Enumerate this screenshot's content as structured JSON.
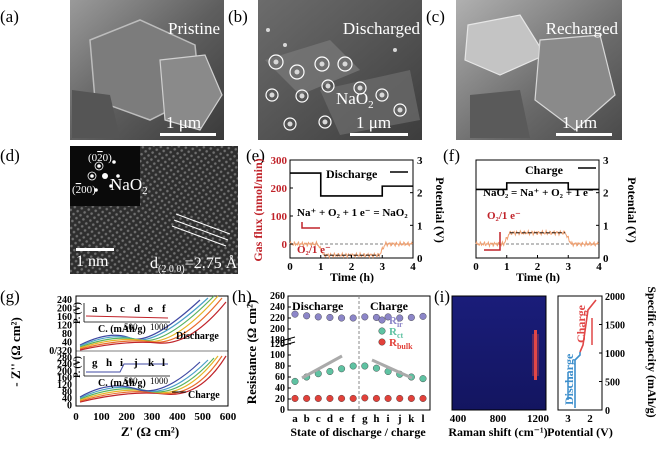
{
  "panels": {
    "a": {
      "letter": "(a)",
      "title": "Pristine",
      "scale": "1 μm"
    },
    "b": {
      "letter": "(b)",
      "title": "Discharged",
      "scale": "1 μm",
      "species": "NaO",
      "species_sub": "2"
    },
    "c": {
      "letter": "(c)",
      "title": "Recharged",
      "scale": "1 μm"
    },
    "d": {
      "letter": "(d)",
      "spot1": "(0",
      "spot1_bar": "2",
      "spot1_end": "0)",
      "spot2": "(",
      "spot2_bar": "2",
      "spot2_end": "00)",
      "species": "NaO",
      "species_sub": "2",
      "scale": "1 nm",
      "d_label": "d",
      "d_sub": "(2 0 0)",
      "d_value": "=2.75 Å"
    },
    "e": {
      "letter": "(e)",
      "ylabel": "Gas flux (nmol/min)",
      "ylabel_right": "Potential (V)",
      "xlabel": "Time (h)",
      "mode": "Discharge",
      "reaction": "Na⁺ + O₂ + 1 e⁻ = NaO₂",
      "rate_label": "O₂/1 e⁻",
      "yticks": [
        "0",
        "100",
        "200",
        "300"
      ],
      "yticks_right": [
        "0",
        "1",
        "2",
        "3"
      ],
      "xticks": [
        "0",
        "1",
        "2",
        "3",
        "4"
      ]
    },
    "f": {
      "letter": "(f)",
      "mode": "Charge",
      "reaction": "NaO₂ = Na⁺ + O₂ + 1 e⁻",
      "rate_label": "O₂/1 e⁻",
      "ylabel_right": "Potential (V)",
      "xlabel": "Time (h)",
      "yticks": [
        "0",
        "100",
        "200",
        "300"
      ],
      "yticks_right": [
        "0",
        "1",
        "2",
        "3"
      ],
      "xticks": [
        "0",
        "1",
        "2",
        "3",
        "4"
      ]
    },
    "g": {
      "letter": "(g)",
      "ylabel": "- Z'' (Ω cm²)",
      "xlabel": "Z' (Ω cm²)",
      "yticks_top": [
        "240",
        "200",
        "160",
        "120",
        "80",
        "40"
      ],
      "yticks_bottom": [
        "0/320",
        "280",
        "240",
        "200",
        "160",
        "120",
        "80",
        "40",
        "0"
      ],
      "xticks": [
        "0",
        "100",
        "200",
        "300",
        "400",
        "500",
        "600"
      ],
      "discharge_label": "Discharge",
      "charge_label": "Charge",
      "inset_top_states": [
        "a",
        "b",
        "c",
        "d",
        "e",
        "f"
      ],
      "inset_bottom_states": [
        "g",
        "h",
        "i",
        "j",
        "k",
        "l"
      ],
      "inset_xlabel": "C. (mAh/g)",
      "inset_ylabel": "P. (V)",
      "inset_ticks": [
        "500",
        "1000"
      ]
    },
    "h": {
      "letter": "(h)",
      "ylabel": "Resistance (Ω cm²)",
      "xlabel": "State of discharge / charge",
      "discharge_label": "Discharge",
      "charge_label": "Charge",
      "states": [
        "a",
        "b",
        "c",
        "d",
        "e",
        "f",
        "g",
        "h",
        "i",
        "j",
        "k",
        "l"
      ],
      "yticks": [
        "260",
        "240",
        "220",
        "200",
        "180",
        "120",
        "100",
        "80",
        "60",
        "40",
        "20",
        "0"
      ],
      "legend": [
        {
          "name": "R",
          "sub": "ir",
          "color": "#8c86c8"
        },
        {
          "name": "R",
          "sub": "ct",
          "color": "#5fc2a2"
        },
        {
          "name": "R",
          "sub": "bulk",
          "color": "#e2413a"
        }
      ]
    },
    "i": {
      "letter": "(i)",
      "raman_xlabel": "Raman shift (cm⁻¹)",
      "raman_xticks": [
        "400",
        "800",
        "1200"
      ],
      "pot_xlabel": "Potential (V)",
      "pot_xticks": [
        "3",
        "2"
      ],
      "ylabel_right": "Specific capacity (mAh/g)",
      "yticks_right": [
        "0",
        "500",
        "1000",
        "1500",
        "2000"
      ],
      "discharge_label": "Discharge",
      "charge_label": "Charge"
    }
  },
  "chart_data": [
    {
      "panel": "e",
      "type": "line",
      "title": "Discharge",
      "xlabel": "Time (h)",
      "ylabel": "Gas flux (nmol/min)",
      "ylabel_right": "Potential (V)",
      "xlim": [
        0,
        4
      ],
      "ylim": [
        -50,
        300
      ],
      "ylim_right": [
        0,
        3
      ],
      "series": [
        {
          "name": "Potential (V)",
          "axis": "right",
          "x": [
            0,
            1.0,
            1.0,
            3.0,
            3.0,
            4
          ],
          "y": [
            2.6,
            2.6,
            1.9,
            1.9,
            2.2,
            2.2
          ]
        },
        {
          "name": "Gas flux",
          "axis": "left",
          "x": [
            0,
            0.9,
            1.1,
            2.9,
            3.1,
            4
          ],
          "y": [
            0,
            0,
            -40,
            -40,
            0,
            0
          ]
        },
        {
          "name": "O2/1 e-",
          "axis": "left",
          "x": [
            1.1,
            2.9
          ],
          "y": [
            -40,
            -40
          ]
        }
      ]
    },
    {
      "panel": "f",
      "type": "line",
      "title": "Charge",
      "xlabel": "Time (h)",
      "ylabel_right": "Potential (V)",
      "xlim": [
        0,
        4
      ],
      "ylim": [
        -50,
        300
      ],
      "ylim_right": [
        0,
        3
      ],
      "series": [
        {
          "name": "Potential (V)",
          "axis": "right",
          "x": [
            0,
            1.0,
            1.0,
            3.0,
            3.0,
            4
          ],
          "y": [
            2.1,
            2.1,
            2.3,
            2.3,
            2.1,
            2.1
          ]
        },
        {
          "name": "Gas flux",
          "axis": "left",
          "x": [
            0,
            0.9,
            1.1,
            2.9,
            3.1,
            4
          ],
          "y": [
            0,
            0,
            40,
            40,
            0,
            0
          ]
        },
        {
          "name": "O2/1 e-",
          "axis": "left",
          "x": [
            1.1,
            2.9
          ],
          "y": [
            40,
            40
          ]
        }
      ]
    },
    {
      "panel": "h",
      "type": "scatter",
      "xlabel": "State of discharge / charge",
      "ylabel": "Resistance (Ω cm²)",
      "categories": [
        "a",
        "b",
        "c",
        "d",
        "e",
        "f",
        "g",
        "h",
        "i",
        "j",
        "k",
        "l"
      ],
      "series": [
        {
          "name": "R_ir",
          "values": [
            227,
            224,
            222,
            221,
            220,
            220,
            222,
            221,
            222,
            220,
            221,
            223
          ]
        },
        {
          "name": "R_ct",
          "values": [
            52,
            60,
            66,
            70,
            75,
            80,
            80,
            76,
            70,
            65,
            60,
            57
          ]
        },
        {
          "name": "R_bulk",
          "values": [
            21,
            21,
            21,
            21,
            21,
            21,
            22,
            21,
            21,
            21,
            21,
            21
          ]
        }
      ]
    }
  ]
}
